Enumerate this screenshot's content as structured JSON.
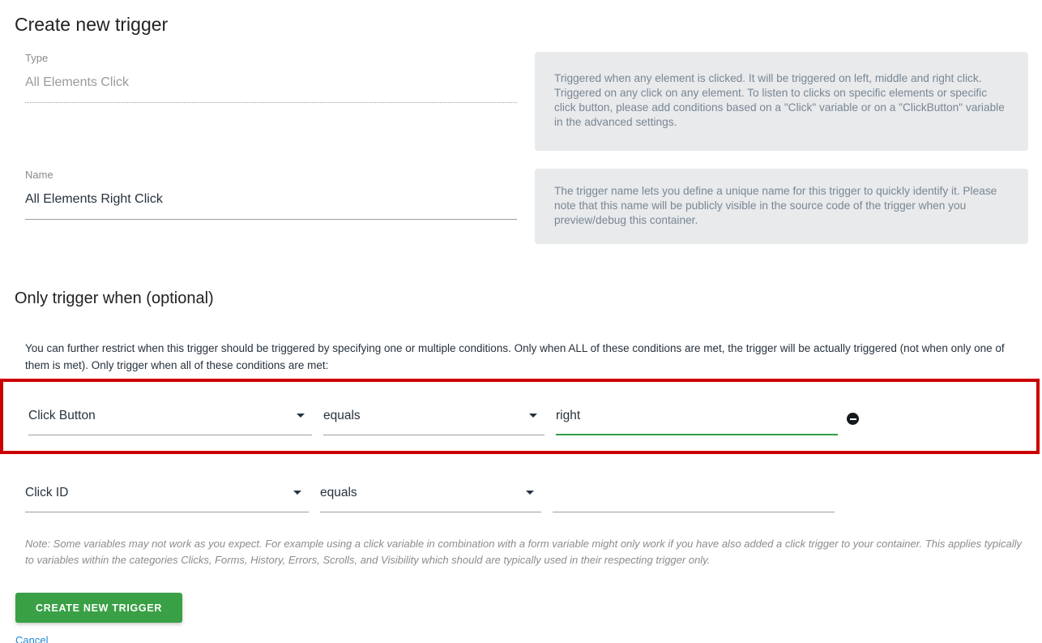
{
  "page": {
    "title": "Create new trigger"
  },
  "type_field": {
    "label": "Type",
    "value": "All Elements Click",
    "help": "Triggered when any element is clicked. It will be triggered on left, middle and right click. Triggered on any click on any element. To listen to clicks on specific elements or specific click button, please add conditions based on a \"Click\" variable or on a \"ClickButton\" variable in the advanced settings."
  },
  "name_field": {
    "label": "Name",
    "value": "All Elements Right Click",
    "help": "The trigger name lets you define a unique name for this trigger to quickly identify it. Please note that this name will be publicly visible in the source code of the trigger when you preview/debug this container."
  },
  "conditions": {
    "heading": "Only trigger when (optional)",
    "intro": "You can further restrict when this trigger should be triggered by specifying one or multiple conditions. Only when ALL of these conditions are met, the trigger will be actually triggered (not when only one of them is met). Only trigger when all of these conditions are met:",
    "rows": [
      {
        "variable": "Click Button",
        "comparison": "equals",
        "value": "right"
      },
      {
        "variable": "Click ID",
        "comparison": "equals",
        "value": ""
      }
    ],
    "note": "Note: Some variables may not work as you expect. For example using a click variable in combination with a form variable might only work if you have also added a click trigger to your container. This applies typically to variables within the categories Clicks, Forms, History, Errors, Scrolls, and Visibility which should are typically used in their respecting trigger only."
  },
  "actions": {
    "submit_label": "CREATE NEW TRIGGER",
    "cancel_label": "Cancel"
  },
  "icons": {
    "remove_condition": "minus-circle-icon",
    "dropdown": "caret-down-icon"
  },
  "colors": {
    "accent_green": "#3aa046",
    "focus_underline_green": "#2f9e49",
    "highlight_red": "#cc0000",
    "link_blue": "#1e87d5",
    "help_background": "#e8eaec",
    "help_text": "#7a8793",
    "dark_text": "#26323d",
    "muted_text": "#9a9a9a"
  }
}
